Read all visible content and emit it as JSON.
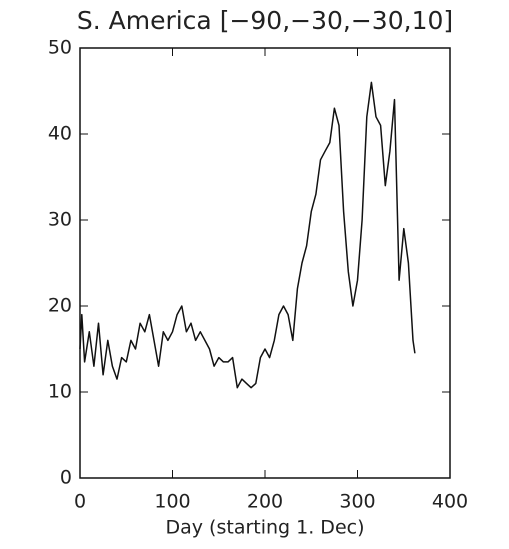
{
  "chart_data": {
    "type": "line",
    "title": "S. America [−90,−30,−30,10]",
    "x_label": "Day (starting 1. Dec)",
    "x": [
      0,
      2,
      5,
      10,
      15,
      20,
      25,
      30,
      35,
      40,
      45,
      50,
      55,
      60,
      65,
      70,
      75,
      80,
      85,
      90,
      95,
      100,
      105,
      110,
      115,
      120,
      125,
      130,
      135,
      140,
      145,
      150,
      155,
      160,
      165,
      170,
      175,
      180,
      185,
      190,
      195,
      200,
      205,
      210,
      215,
      220,
      225,
      230,
      235,
      240,
      245,
      250,
      255,
      260,
      265,
      270,
      275,
      280,
      285,
      290,
      295,
      300,
      305,
      310,
      315,
      320,
      325,
      330,
      335,
      340,
      345,
      350,
      355,
      360,
      362
    ],
    "series": [
      {
        "name": "S. America",
        "color": "#111111",
        "values": [
          15,
          19,
          13.5,
          17,
          13,
          18,
          12,
          16,
          13,
          11.5,
          14,
          13.5,
          16,
          15,
          18,
          17,
          19,
          16,
          13,
          17,
          16,
          17,
          19,
          20,
          17,
          18,
          16,
          17,
          16,
          15,
          13,
          14,
          13.5,
          13.5,
          14,
          10.5,
          11.5,
          11,
          10.5,
          11,
          14,
          15,
          14,
          16,
          19,
          20,
          19,
          16,
          22,
          25,
          27,
          31,
          33,
          37,
          38,
          39,
          43,
          41,
          31,
          24,
          20,
          23,
          30,
          42,
          46,
          42,
          41,
          34,
          38,
          44,
          23,
          29,
          25,
          16,
          14.5
        ]
      }
    ],
    "xlim": [
      0,
      400
    ],
    "xticks": [
      0,
      100,
      200,
      300,
      400
    ],
    "ylim": [
      0,
      50
    ],
    "yticks": [
      0,
      10,
      20,
      30,
      40,
      50
    ]
  }
}
